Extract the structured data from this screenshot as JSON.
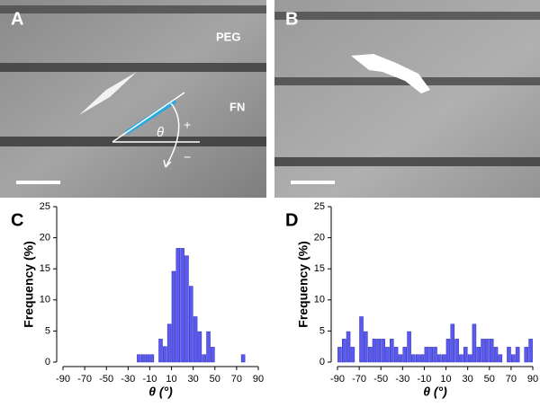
{
  "panels": [
    {
      "label": "A",
      "annotations": [
        "PEG",
        "FN",
        "θ",
        "+",
        "−"
      ]
    },
    {
      "label": "B"
    }
  ],
  "chart_data": [
    {
      "type": "histogram",
      "panel_label": "C",
      "xlabel": "θ (°)",
      "ylabel": "Frequency (%)",
      "bins": [
        -90,
        -86,
        -82,
        -78,
        -74,
        -70,
        -66,
        -62,
        -58,
        -54,
        -50,
        -46,
        -42,
        -38,
        -34,
        -30,
        -26,
        -22,
        -18,
        -14,
        -10,
        -6,
        -2,
        2,
        6,
        10,
        14,
        18,
        22,
        26,
        30,
        34,
        38,
        42,
        46,
        50,
        54,
        58,
        62,
        66,
        70,
        74,
        78,
        82,
        86,
        90
      ],
      "values": [
        0,
        0,
        0,
        0,
        0,
        0,
        0,
        0,
        0,
        0,
        0,
        0,
        0,
        0,
        0,
        0,
        0,
        1.2,
        1.2,
        1.2,
        1.2,
        0,
        3.7,
        2.5,
        6.1,
        14.6,
        18.3,
        18.3,
        17.1,
        12.2,
        7.3,
        4.9,
        1.2,
        4.9,
        2.4,
        0,
        0,
        0,
        0,
        0,
        0,
        1.2,
        0,
        0,
        0
      ],
      "xlim": [
        -90,
        90
      ],
      "ylim": [
        0,
        25
      ],
      "xticks": [
        -90,
        -70,
        -50,
        -30,
        -10,
        10,
        30,
        50,
        70,
        90
      ],
      "yticks": [
        0,
        5,
        10,
        15,
        20,
        25
      ],
      "color": "#5a5af0"
    },
    {
      "type": "histogram",
      "panel_label": "D",
      "xlabel": "θ (°)",
      "ylabel": "Frequency (%)",
      "bins": [
        -90,
        -86,
        -82,
        -78,
        -74,
        -70,
        -66,
        -62,
        -58,
        -54,
        -50,
        -46,
        -42,
        -38,
        -34,
        -30,
        -26,
        -22,
        -18,
        -14,
        -10,
        -6,
        -2,
        2,
        6,
        10,
        14,
        18,
        22,
        26,
        30,
        34,
        38,
        42,
        46,
        50,
        54,
        58,
        62,
        66,
        70,
        74,
        78,
        82,
        86,
        90
      ],
      "values": [
        2.4,
        3.7,
        4.9,
        2.4,
        0,
        7.3,
        4.9,
        2.4,
        3.7,
        3.7,
        3.7,
        2.4,
        3.7,
        2.4,
        1.2,
        2.4,
        4.9,
        1.2,
        1.2,
        1.2,
        2.4,
        2.4,
        2.4,
        1.2,
        1.2,
        3.7,
        6.1,
        3.7,
        1.2,
        2.4,
        1.2,
        6.1,
        2.4,
        3.7,
        3.7,
        3.7,
        2.4,
        1.2,
        0,
        2.4,
        1.2,
        2.4,
        0,
        2.4,
        3.7
      ],
      "xlim": [
        -90,
        90
      ],
      "ylim": [
        0,
        25
      ],
      "xticks": [
        -90,
        -70,
        -50,
        -30,
        -10,
        10,
        30,
        50,
        70,
        90
      ],
      "yticks": [
        0,
        5,
        10,
        15,
        20,
        25
      ],
      "color": "#5a5af0"
    }
  ]
}
